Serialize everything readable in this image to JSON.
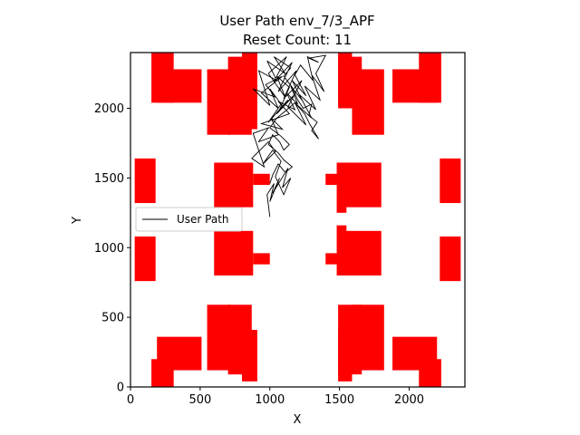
{
  "chart_data": {
    "type": "line",
    "title": "User Path env_7/3_APF",
    "subtitle": "Reset Count: 11",
    "xlabel": "X",
    "ylabel": "Y",
    "xlim": [
      0,
      2400
    ],
    "ylim": [
      0,
      2400
    ],
    "xticks": [
      0,
      500,
      1000,
      1500,
      2000
    ],
    "yticks": [
      0,
      500,
      1000,
      1500,
      2000
    ],
    "grid": false,
    "legend": {
      "position": "center-left",
      "entries": [
        "User Path"
      ]
    },
    "colors": {
      "obstacle": "#ff0000",
      "path": "#000000"
    },
    "obstacles": [
      {
        "x0": 150,
        "y0": 2040,
        "x1": 310,
        "y1": 2400
      },
      {
        "x0": 190,
        "y0": 2040,
        "x1": 510,
        "y1": 2280
      },
      {
        "x0": 550,
        "y0": 1810,
        "x1": 720,
        "y1": 2280
      },
      {
        "x0": 700,
        "y0": 1810,
        "x1": 870,
        "y1": 2370
      },
      {
        "x0": 800,
        "y0": 1850,
        "x1": 910,
        "y1": 2400
      },
      {
        "x0": 1490,
        "y0": 2040,
        "x1": 1590,
        "y1": 2400
      },
      {
        "x0": 1490,
        "y0": 2000,
        "x1": 1660,
        "y1": 2370
      },
      {
        "x0": 1590,
        "y0": 1810,
        "x1": 1820,
        "y1": 2280
      },
      {
        "x0": 1880,
        "y0": 2040,
        "x1": 2200,
        "y1": 2280
      },
      {
        "x0": 2070,
        "y0": 2040,
        "x1": 2230,
        "y1": 2400
      },
      {
        "x0": 30,
        "y0": 1320,
        "x1": 180,
        "y1": 1640
      },
      {
        "x0": 600,
        "y0": 1290,
        "x1": 880,
        "y1": 1610
      },
      {
        "x0": 880,
        "y0": 1450,
        "x1": 1000,
        "y1": 1530
      },
      {
        "x0": 1400,
        "y0": 1450,
        "x1": 1520,
        "y1": 1530
      },
      {
        "x0": 1480,
        "y0": 1250,
        "x1": 1550,
        "y1": 1610
      },
      {
        "x0": 1520,
        "y0": 1290,
        "x1": 1800,
        "y1": 1610
      },
      {
        "x0": 2220,
        "y0": 1320,
        "x1": 2370,
        "y1": 1640
      },
      {
        "x0": 30,
        "y0": 760,
        "x1": 180,
        "y1": 1080
      },
      {
        "x0": 600,
        "y0": 800,
        "x1": 880,
        "y1": 1120
      },
      {
        "x0": 880,
        "y0": 880,
        "x1": 1000,
        "y1": 960
      },
      {
        "x0": 1400,
        "y0": 880,
        "x1": 1520,
        "y1": 960
      },
      {
        "x0": 1480,
        "y0": 800,
        "x1": 1550,
        "y1": 1160
      },
      {
        "x0": 1520,
        "y0": 800,
        "x1": 1800,
        "y1": 1120
      },
      {
        "x0": 2220,
        "y0": 760,
        "x1": 2370,
        "y1": 1080
      },
      {
        "x0": 550,
        "y0": 120,
        "x1": 720,
        "y1": 590
      },
      {
        "x0": 700,
        "y0": 90,
        "x1": 870,
        "y1": 590
      },
      {
        "x0": 800,
        "y0": 40,
        "x1": 910,
        "y1": 410
      },
      {
        "x0": 150,
        "y0": 0,
        "x1": 310,
        "y1": 200
      },
      {
        "x0": 190,
        "y0": 120,
        "x1": 510,
        "y1": 360
      },
      {
        "x0": 1490,
        "y0": 40,
        "x1": 1590,
        "y1": 410
      },
      {
        "x0": 1490,
        "y0": 90,
        "x1": 1660,
        "y1": 590
      },
      {
        "x0": 1590,
        "y0": 120,
        "x1": 1820,
        "y1": 590
      },
      {
        "x0": 1880,
        "y0": 120,
        "x1": 2200,
        "y1": 360
      },
      {
        "x0": 2070,
        "y0": 0,
        "x1": 2230,
        "y1": 200
      }
    ],
    "series": [
      {
        "name": "User Path",
        "x": [
          1000,
          980,
          1030,
          1000,
          1070,
          1020,
          1130,
          1090,
          1150,
          1100,
          1040,
          1080,
          1020,
          950,
          1040,
          990,
          870,
          960,
          880,
          990,
          920,
          1060,
          1010,
          1090,
          940,
          1140,
          1060,
          1180,
          1120,
          1200,
          1150,
          1230,
          1160,
          1260,
          1180,
          1220,
          1310,
          1270,
          1350,
          1280,
          1400,
          1330,
          1390,
          1300,
          1360,
          1250,
          1330,
          1210,
          1300,
          1180,
          1260,
          1130,
          1230,
          1100,
          1190,
          1060,
          1160,
          1030,
          1120,
          990,
          1110,
          1050,
          1140,
          1070,
          1180,
          1050,
          1130,
          990,
          1080,
          1000,
          1060,
          940,
          1090,
          970,
          1040,
          880,
          1000,
          920,
          1050,
          980,
          1110,
          1030,
          1150,
          1100,
          1160,
          1200,
          1240,
          1300,
          1280,
          1340,
          1300,
          1350,
          1290,
          1250,
          1180,
          1110,
          1050,
          1000,
          1080,
          1140,
          1100,
          1070,
          1020,
          990,
          1060,
          1100,
          1160,
          1110,
          1060,
          1020,
          1000
        ],
        "y": [
          1220,
          1380,
          1460,
          1330,
          1500,
          1390,
          1570,
          1430,
          1500,
          1380,
          1510,
          1620,
          1700,
          1600,
          1690,
          1760,
          1640,
          1580,
          1820,
          1860,
          1760,
          1810,
          1930,
          1850,
          1890,
          1960,
          2050,
          1990,
          2110,
          2030,
          2160,
          2060,
          2200,
          2090,
          2240,
          2310,
          2200,
          2370,
          2330,
          2360,
          2380,
          2250,
          2120,
          2240,
          2060,
          2160,
          1990,
          2100,
          1930,
          2040,
          1880,
          2010,
          2200,
          2070,
          2270,
          2120,
          2330,
          2190,
          2370,
          2250,
          2080,
          2230,
          2150,
          1990,
          2100,
          1960,
          2060,
          1900,
          2030,
          2140,
          2000,
          2110,
          2230,
          2170,
          2080,
          2140,
          2020,
          2270,
          2200,
          2340,
          2250,
          2370,
          2290,
          2230,
          2150,
          2060,
          2000,
          2030,
          1950,
          1900,
          1840,
          1780,
          1880,
          1960,
          2040,
          1980,
          1930,
          1860,
          1800,
          1740,
          1700,
          1760,
          1810,
          1740,
          1680,
          1630,
          1580,
          1540,
          1600,
          1520,
          1460
        ]
      }
    ]
  }
}
